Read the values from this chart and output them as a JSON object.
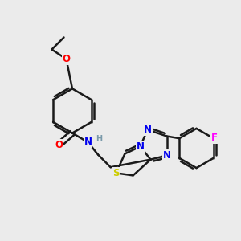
{
  "background_color": "#ebebeb",
  "bond_color": "#1a1a1a",
  "bond_width": 1.8,
  "atom_colors": {
    "O": "#ff0000",
    "N": "#0000ee",
    "S": "#cccc00",
    "F": "#ff00ff",
    "H": "#7a9aaa",
    "C": "#1a1a1a"
  },
  "font_size": 8.5,
  "fig_width": 3.0,
  "fig_height": 3.0,
  "dpi": 100,
  "xlim": [
    0,
    10
  ],
  "ylim": [
    0,
    10
  ]
}
